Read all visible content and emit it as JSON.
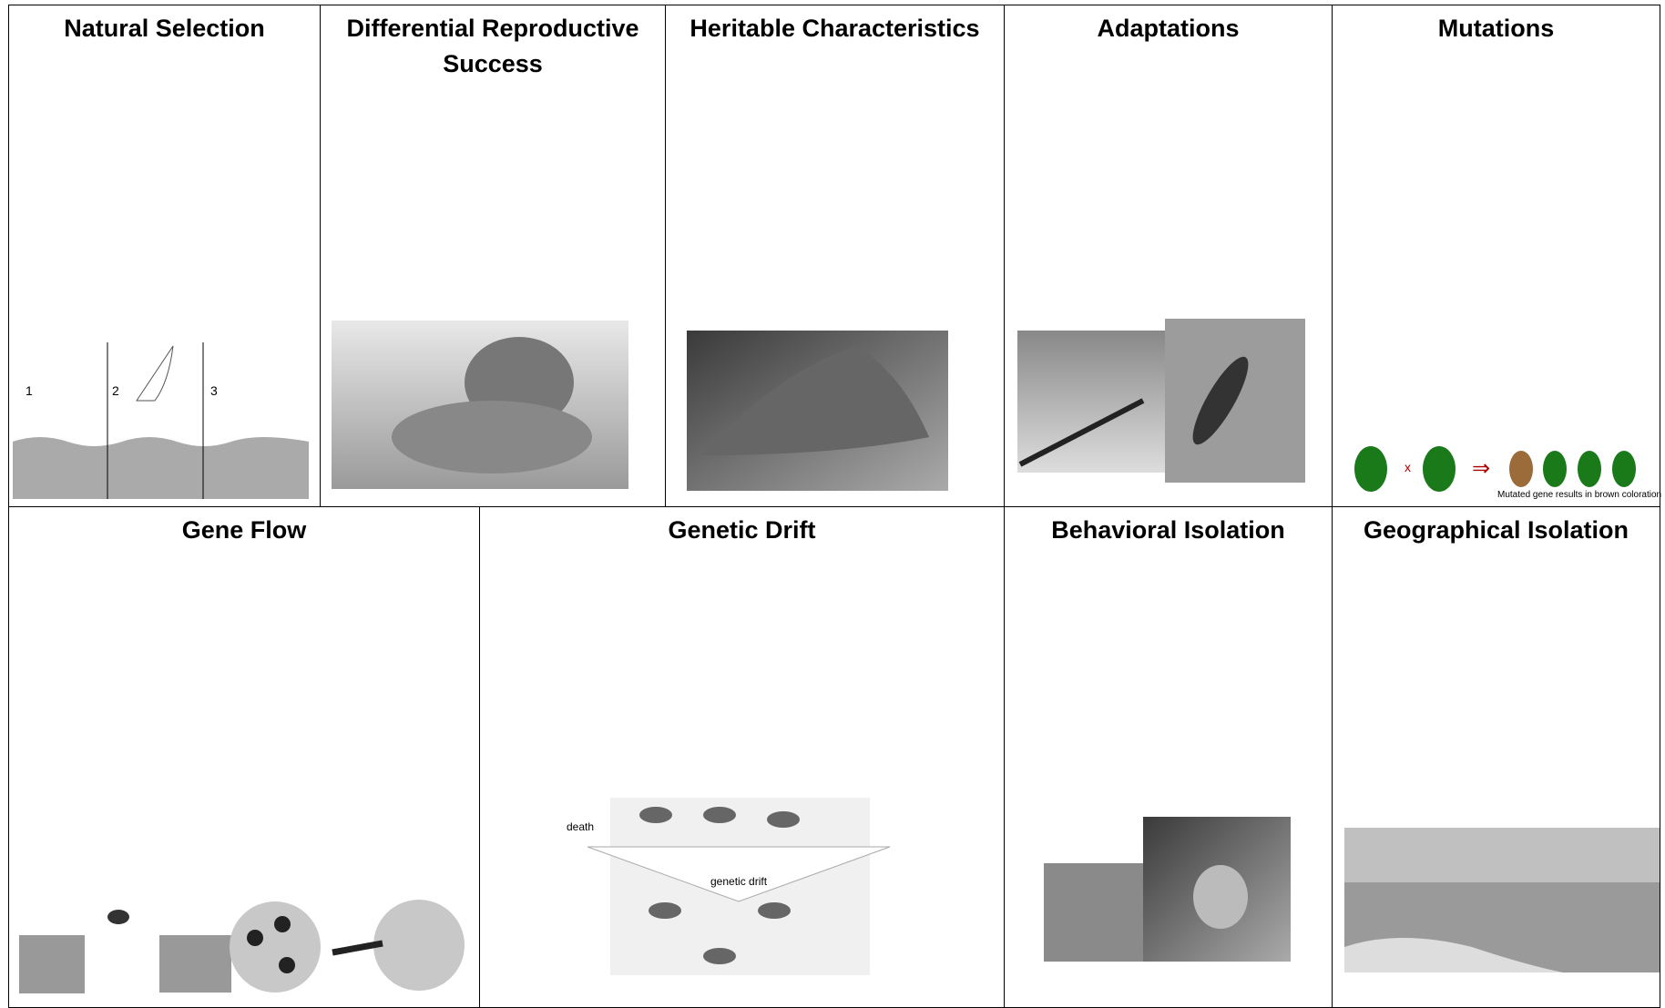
{
  "cells": [
    {
      "title": "Natural Selection"
    },
    {
      "title": "Differential Reproductive Success"
    },
    {
      "title": "Heritable Characteristics"
    },
    {
      "title": "Adaptations"
    },
    {
      "title": "Mutations"
    },
    {
      "title": "Gene Flow"
    },
    {
      "title": "Genetic Drift"
    },
    {
      "title": "Behavioral Isolation"
    },
    {
      "title": "Geographical Isolation"
    }
  ],
  "figures": {
    "natural_selection_panels": [
      "1",
      "2",
      "3"
    ],
    "mutations_caption": "Mutated gene results in brown coloration",
    "drift_death": "death",
    "drift_label": "genetic drift"
  }
}
